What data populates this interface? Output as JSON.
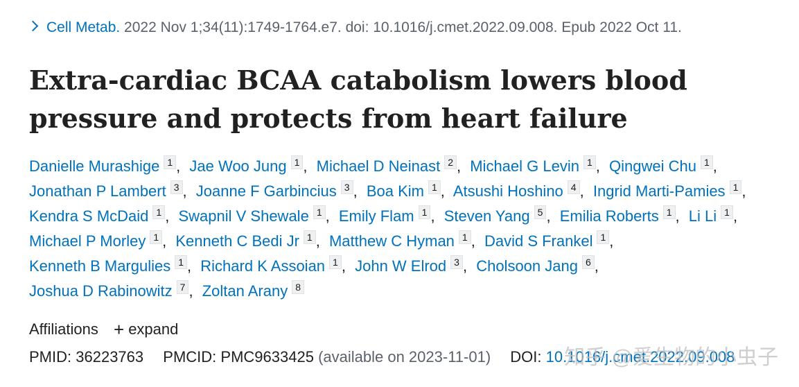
{
  "citation": {
    "journal": "Cell Metab.",
    "details": " 2022 Nov 1;34(11):1749-1764.e7. doi: 10.1016/j.cmet.2022.09.008. Epub 2022 Oct 11."
  },
  "title": "Extra-cardiac BCAA catabolism lowers blood pressure and protects from heart failure",
  "authors": [
    {
      "name": "Danielle Murashige",
      "aff": "1"
    },
    {
      "name": "Jae Woo Jung",
      "aff": "1"
    },
    {
      "name": "Michael D Neinast",
      "aff": "2"
    },
    {
      "name": "Michael G Levin",
      "aff": "1"
    },
    {
      "name": "Qingwei Chu",
      "aff": "1"
    },
    {
      "name": "Jonathan P Lambert",
      "aff": "3"
    },
    {
      "name": "Joanne F Garbincius",
      "aff": "3"
    },
    {
      "name": "Boa Kim",
      "aff": "1"
    },
    {
      "name": "Atsushi Hoshino",
      "aff": "4"
    },
    {
      "name": "Ingrid Marti-Pamies",
      "aff": "1"
    },
    {
      "name": "Kendra S McDaid",
      "aff": "1"
    },
    {
      "name": "Swapnil V Shewale",
      "aff": "1"
    },
    {
      "name": "Emily Flam",
      "aff": "1"
    },
    {
      "name": "Steven Yang",
      "aff": "5"
    },
    {
      "name": "Emilia Roberts",
      "aff": "1"
    },
    {
      "name": "Li Li",
      "aff": "1"
    },
    {
      "name": "Michael P Morley",
      "aff": "1"
    },
    {
      "name": "Kenneth C Bedi Jr",
      "aff": "1"
    },
    {
      "name": "Matthew C Hyman",
      "aff": "1"
    },
    {
      "name": "David S Frankel",
      "aff": "1"
    },
    {
      "name": "Kenneth B Margulies",
      "aff": "1"
    },
    {
      "name": "Richard K Assoian",
      "aff": "1"
    },
    {
      "name": "John W Elrod",
      "aff": "3"
    },
    {
      "name": "Cholsoon Jang",
      "aff": "6"
    },
    {
      "name": "Joshua D Rabinowitz",
      "aff": "7"
    },
    {
      "name": "Zoltan Arany",
      "aff": "8"
    }
  ],
  "author_lines": [
    5,
    5,
    6,
    4,
    4,
    2
  ],
  "affiliations": {
    "label": "Affiliations",
    "expand_label": "expand"
  },
  "ids": {
    "pmid_label": "PMID:",
    "pmid": "36223763",
    "pmcid_label": "PMCID:",
    "pmcid": "PMC9633425",
    "availability": "(available on 2023-11-01)",
    "doi_label": "DOI:",
    "doi": "10.1016/j.cmet.2022.09.008"
  },
  "watermark": "知乎 @爱生物的小虫子"
}
